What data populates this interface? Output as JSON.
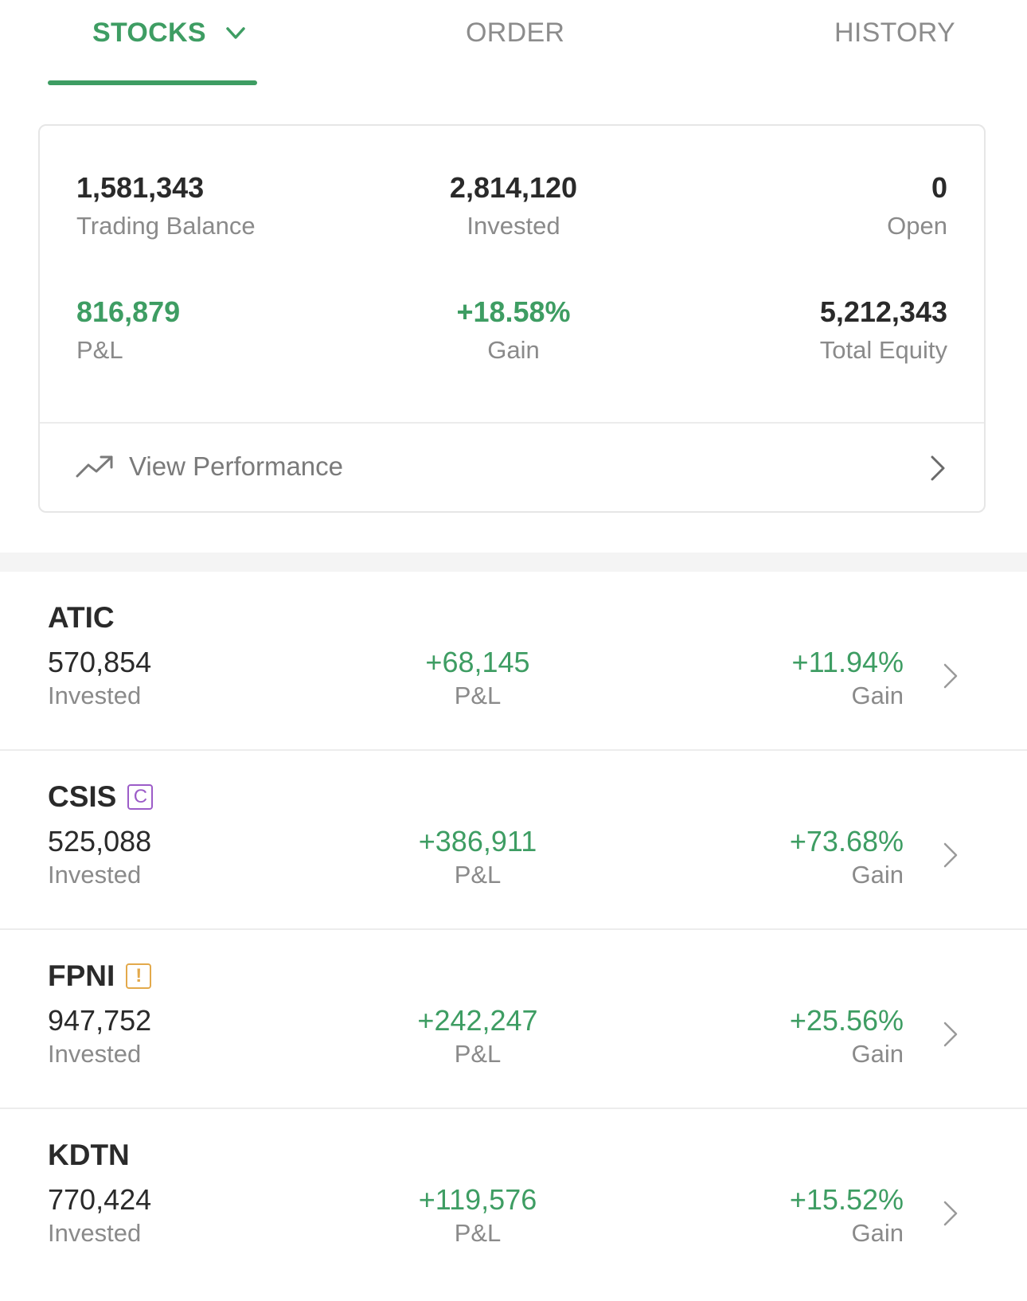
{
  "tabs": {
    "stocks": "STOCKS",
    "order": "ORDER",
    "history": "HISTORY"
  },
  "summary": {
    "trading_balance": {
      "value": "1,581,343",
      "label": "Trading Balance"
    },
    "invested": {
      "value": "2,814,120",
      "label": "Invested"
    },
    "open": {
      "value": "0",
      "label": "Open"
    },
    "pl": {
      "value": "816,879",
      "label": "P&L"
    },
    "gain": {
      "value": "+18.58%",
      "label": "Gain"
    },
    "total_equity": {
      "value": "5,212,343",
      "label": "Total Equity"
    },
    "view_performance": "View Performance"
  },
  "holdings": [
    {
      "ticker": "ATIC",
      "badge": "",
      "invested": "570,854",
      "invested_label": "Invested",
      "pl": "+68,145",
      "pl_label": "P&L",
      "gain": "+11.94%",
      "gain_label": "Gain"
    },
    {
      "ticker": "CSIS",
      "badge": "C",
      "invested": "525,088",
      "invested_label": "Invested",
      "pl": "+386,911",
      "pl_label": "P&L",
      "gain": "+73.68%",
      "gain_label": "Gain"
    },
    {
      "ticker": "FPNI",
      "badge": "!",
      "invested": "947,752",
      "invested_label": "Invested",
      "pl": "+242,247",
      "pl_label": "P&L",
      "gain": "+25.56%",
      "gain_label": "Gain"
    },
    {
      "ticker": "KDTN",
      "badge": "",
      "invested": "770,424",
      "invested_label": "Invested",
      "pl": "+119,576",
      "pl_label": "P&L",
      "gain": "+15.52%",
      "gain_label": "Gain"
    }
  ],
  "colors": {
    "accent_green": "#3e9d63",
    "badge_purple": "#9c5cc8",
    "badge_amber": "#e3a94b",
    "text_gray": "#8a8a8a"
  },
  "icons": {
    "tab_dropdown": "chevron-down-icon",
    "performance": "trending-up-icon",
    "row_open": "chevron-right-icon"
  }
}
